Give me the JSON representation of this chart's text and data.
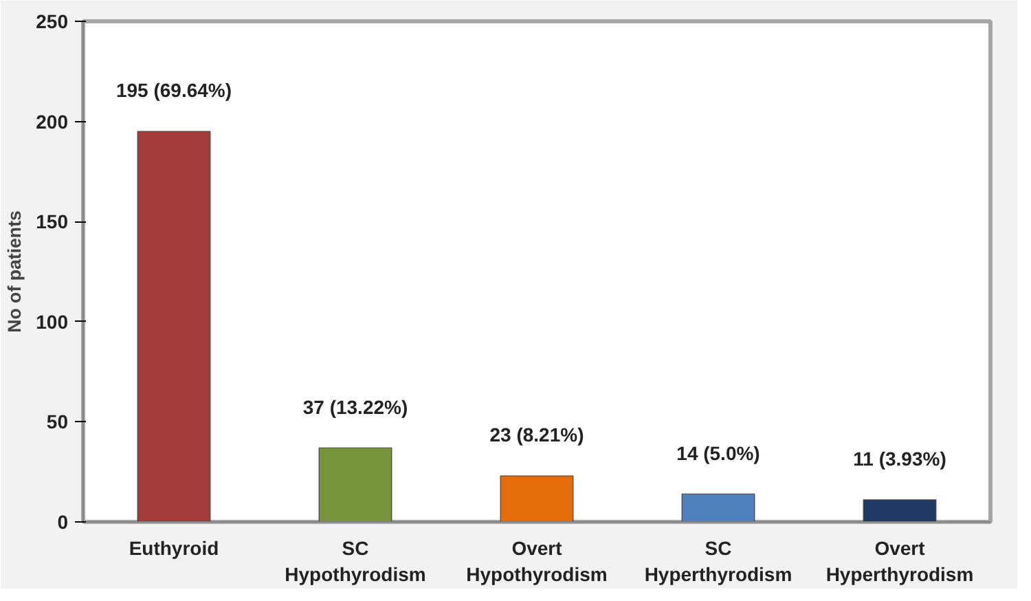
{
  "chart_data": {
    "type": "bar",
    "ylabel": "No of patients",
    "categories": [
      "Euthyroid",
      "SC Hypothyrodism",
      "Overt Hypothyrodism",
      "SC Hyperthyrodism",
      "Overt Hyperthyrodism"
    ],
    "values": [
      195,
      37,
      23,
      14,
      11
    ],
    "colors": [
      "#a33b3b",
      "#77933c",
      "#e46c0a",
      "#4f81bd",
      "#1f3864"
    ],
    "value_labels": [
      "195 (69.64%)",
      "37 (13.22%)",
      "23 (8.21%)",
      "14 (5.0%)",
      "11 (3.93%)"
    ],
    "ylim": [
      0,
      250
    ],
    "yticks": [
      0,
      50,
      100,
      150,
      200,
      250
    ],
    "grid": false
  }
}
